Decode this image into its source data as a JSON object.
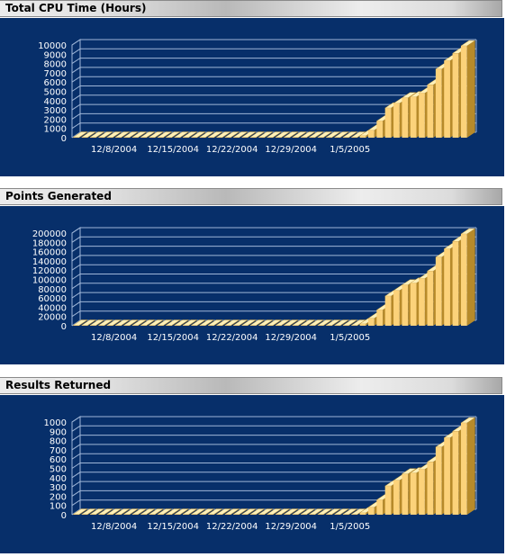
{
  "colors": {
    "panel_bg": "#072f6a",
    "grid": "#9fb6d8",
    "bar_front": "#fcd27a",
    "bar_top": "#fff0b8",
    "bar_side": "#b78a2a"
  },
  "x_tick_labels": [
    "12/8/2004",
    "12/15/2004",
    "12/22/2004",
    "12/29/2004",
    "1/5/2005"
  ],
  "chart_data": [
    {
      "type": "bar",
      "title": "Total CPU Time (Hours)",
      "xlabel": "",
      "ylabel": "",
      "ylim": [
        0,
        10000
      ],
      "yticks": [
        0,
        1000,
        2000,
        3000,
        4000,
        5000,
        6000,
        7000,
        8000,
        9000,
        10000
      ],
      "grid": true,
      "x_ticks": [
        "12/8/2004",
        "12/15/2004",
        "12/22/2004",
        "12/29/2004",
        "1/5/2005"
      ],
      "values": [
        0,
        0,
        0,
        0,
        0,
        0,
        0,
        0,
        0,
        0,
        0,
        0,
        0,
        0,
        0,
        0,
        0,
        0,
        0,
        0,
        0,
        0,
        0,
        0,
        0,
        0,
        0,
        0,
        0,
        0,
        0,
        0,
        0,
        0,
        200,
        800,
        1800,
        3200,
        3700,
        4300,
        4400,
        4800,
        5700,
        7400,
        8300,
        9100,
        9900
      ]
    },
    {
      "type": "bar",
      "title": "Points Generated",
      "xlabel": "",
      "ylabel": "",
      "ylim": [
        0,
        200000
      ],
      "yticks": [
        0,
        20000,
        40000,
        60000,
        80000,
        100000,
        120000,
        140000,
        160000,
        180000,
        200000
      ],
      "grid": true,
      "x_ticks": [
        "12/8/2004",
        "12/15/2004",
        "12/22/2004",
        "12/29/2004",
        "1/5/2005"
      ],
      "values": [
        0,
        0,
        0,
        0,
        0,
        0,
        0,
        0,
        0,
        0,
        0,
        0,
        0,
        0,
        0,
        0,
        0,
        0,
        0,
        0,
        0,
        0,
        0,
        0,
        0,
        0,
        0,
        0,
        0,
        0,
        0,
        0,
        0,
        0,
        4000,
        16000,
        34000,
        64000,
        76000,
        88000,
        92000,
        102000,
        118000,
        148000,
        166000,
        182000,
        198000
      ]
    },
    {
      "type": "bar",
      "title": "Results Returned",
      "xlabel": "",
      "ylabel": "",
      "ylim": [
        0,
        1000
      ],
      "yticks": [
        0,
        100,
        200,
        300,
        400,
        500,
        600,
        700,
        800,
        900,
        1000
      ],
      "grid": true,
      "x_ticks": [
        "12/8/2004",
        "12/15/2004",
        "12/22/2004",
        "12/29/2004",
        "1/5/2005"
      ],
      "values": [
        0,
        0,
        0,
        0,
        0,
        0,
        0,
        0,
        0,
        0,
        0,
        0,
        0,
        0,
        0,
        0,
        0,
        0,
        0,
        0,
        0,
        0,
        0,
        0,
        0,
        0,
        0,
        0,
        0,
        0,
        0,
        0,
        0,
        0,
        20,
        80,
        160,
        310,
        370,
        440,
        450,
        490,
        570,
        730,
        830,
        900,
        990
      ]
    }
  ]
}
